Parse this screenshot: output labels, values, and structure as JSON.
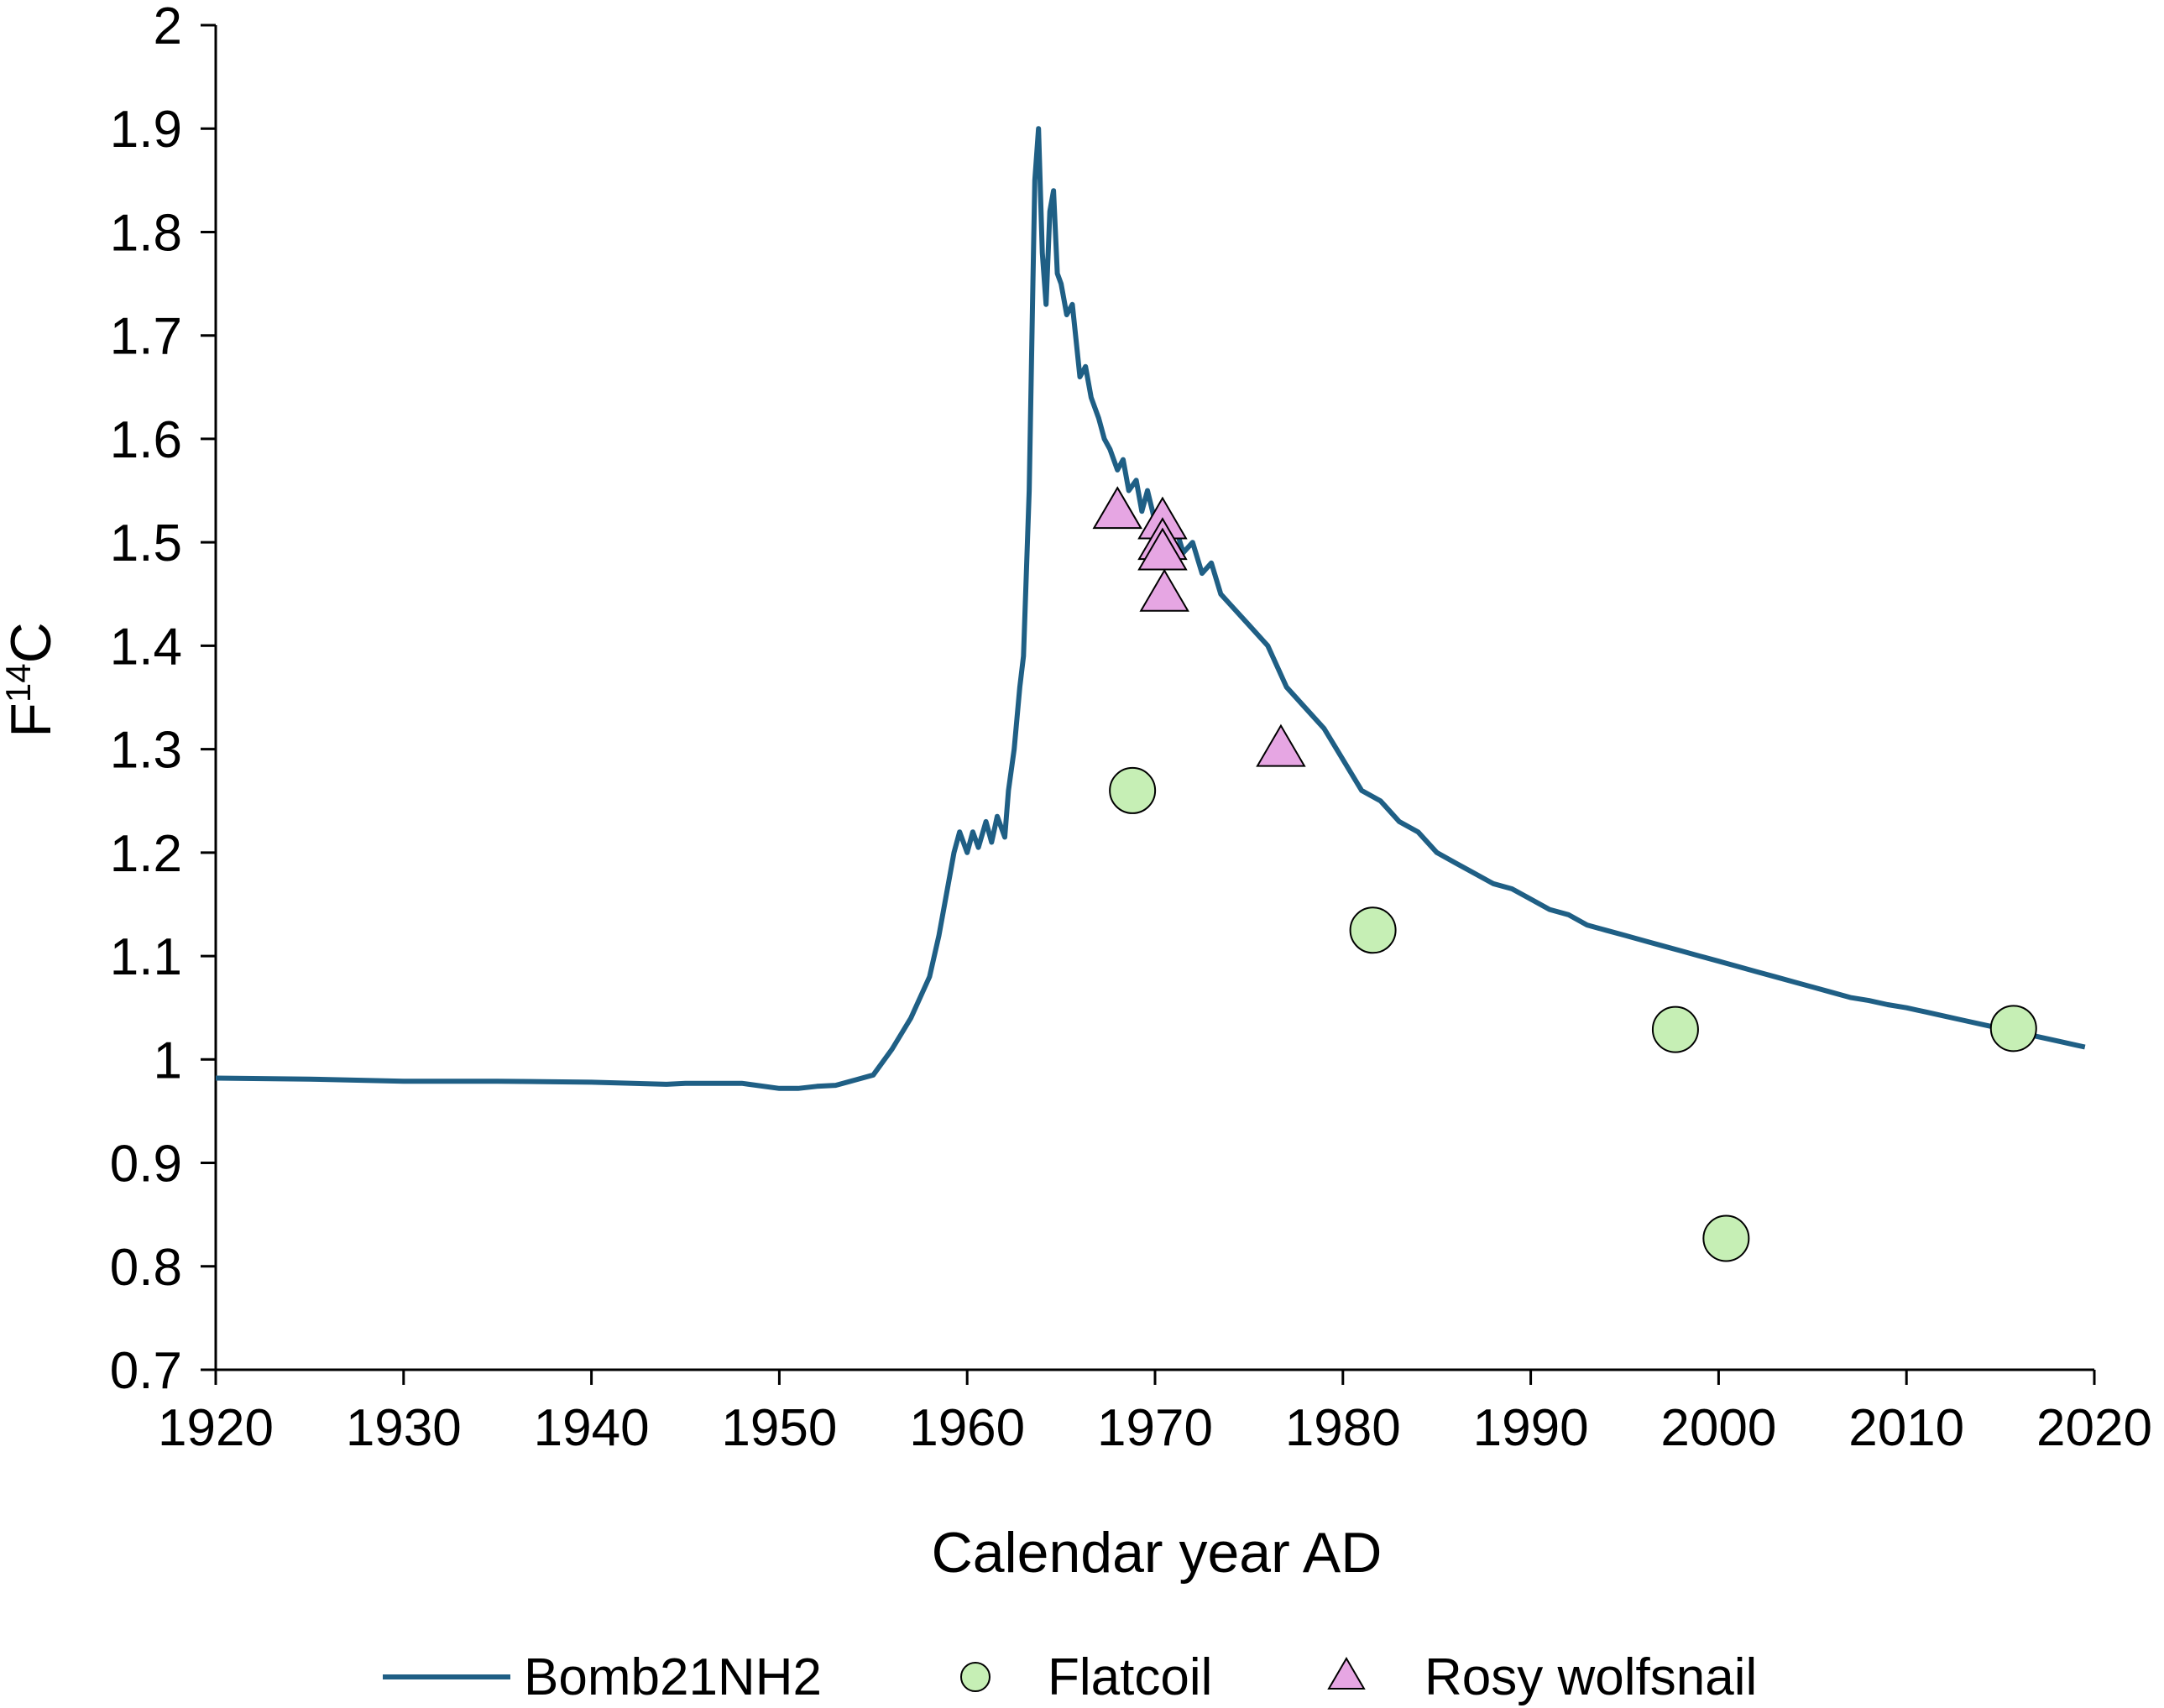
{
  "chart_data": {
    "type": "line+scatter",
    "title": "",
    "xlabel": "Calendar year AD",
    "ylabel": "F",
    "ylabel_superscript": "14",
    "ylabel_suffix": "C",
    "xlim": [
      1920,
      2020
    ],
    "ylim": [
      0.7,
      2.0
    ],
    "xticks": [
      1920,
      1930,
      1940,
      1950,
      1960,
      1970,
      1980,
      1990,
      2000,
      2010,
      2020
    ],
    "yticks": [
      0.7,
      0.8,
      0.9,
      1.0,
      1.1,
      1.2,
      1.3,
      1.4,
      1.5,
      1.6,
      1.7,
      1.8,
      1.9,
      2.0
    ],
    "ytick_labels": [
      "0.7",
      "0.8",
      "0.9",
      "1",
      "1.1",
      "1.2",
      "1.3",
      "1.4",
      "1.5",
      "1.6",
      "1.7",
      "1.8",
      "1.9",
      "2"
    ],
    "grid": false,
    "legend_position": "bottom",
    "series": [
      {
        "name": "Bomb21NH2",
        "type": "line",
        "color": "#1f5f85",
        "x": [
          1920,
          1925,
          1930,
          1935,
          1940,
          1944,
          1945,
          1948,
          1950,
          1951,
          1952,
          1953,
          1954,
          1955,
          1956,
          1957,
          1958,
          1958.5,
          1959,
          1959.3,
          1959.6,
          1960,
          1960.3,
          1960.6,
          1961,
          1961.3,
          1961.6,
          1962,
          1962.2,
          1962.5,
          1962.8,
          1963,
          1963.3,
          1963.5,
          1963.6,
          1963.8,
          1964,
          1964.2,
          1964.4,
          1964.6,
          1964.8,
          1965,
          1965.3,
          1965.6,
          1966,
          1966.3,
          1966.6,
          1967,
          1967.3,
          1967.6,
          1968,
          1968.3,
          1968.6,
          1969,
          1969.3,
          1969.6,
          1970,
          1970.3,
          1970.6,
          1971,
          1971.5,
          1972,
          1972.5,
          1973,
          1973.5,
          1974,
          1975,
          1976,
          1977,
          1978,
          1979,
          1980,
          1981,
          1982,
          1983,
          1984,
          1985,
          1986,
          1987,
          1988,
          1989,
          1990,
          1991,
          1992,
          1993,
          1994,
          1995,
          1996,
          1997,
          1998,
          1999,
          2000,
          2001,
          2002,
          2003,
          2004,
          2005,
          2006,
          2007,
          2008,
          2009,
          2010,
          2011,
          2012,
          2013,
          2014,
          2015,
          2016,
          2017,
          2018,
          2019,
          2019.5
        ],
        "y": [
          0.982,
          0.981,
          0.979,
          0.979,
          0.978,
          0.976,
          0.977,
          0.977,
          0.972,
          0.972,
          0.974,
          0.975,
          0.98,
          0.985,
          1.01,
          1.04,
          1.08,
          1.12,
          1.17,
          1.2,
          1.22,
          1.2,
          1.22,
          1.205,
          1.23,
          1.21,
          1.235,
          1.215,
          1.26,
          1.3,
          1.36,
          1.39,
          1.55,
          1.75,
          1.85,
          1.9,
          1.78,
          1.73,
          1.82,
          1.84,
          1.76,
          1.75,
          1.72,
          1.73,
          1.66,
          1.67,
          1.64,
          1.62,
          1.6,
          1.59,
          1.57,
          1.58,
          1.55,
          1.56,
          1.53,
          1.55,
          1.52,
          1.53,
          1.5,
          1.52,
          1.49,
          1.5,
          1.47,
          1.48,
          1.45,
          1.44,
          1.42,
          1.4,
          1.36,
          1.34,
          1.32,
          1.29,
          1.26,
          1.25,
          1.23,
          1.22,
          1.2,
          1.19,
          1.18,
          1.17,
          1.165,
          1.155,
          1.145,
          1.14,
          1.13,
          1.125,
          1.12,
          1.115,
          1.11,
          1.105,
          1.1,
          1.095,
          1.09,
          1.085,
          1.08,
          1.075,
          1.07,
          1.065,
          1.06,
          1.057,
          1.053,
          1.05,
          1.046,
          1.042,
          1.038,
          1.034,
          1.03,
          1.026,
          1.022,
          1.018,
          1.014,
          1.012
        ]
      },
      {
        "name": "Flatcoil",
        "type": "scatter",
        "marker": "circle",
        "color": "#c6efb5",
        "edge_color": "#000000",
        "x": [
          1968.8,
          1981.6,
          1997.7,
          2000.4,
          2015.7
        ],
        "y": [
          1.26,
          1.125,
          1.029,
          0.827,
          1.03
        ]
      },
      {
        "name": "Rosy wolfsnail",
        "type": "scatter",
        "marker": "triangle",
        "color": "#e6a6e3",
        "edge_color": "#000000",
        "x": [
          1968.0,
          1970.4,
          1970.4,
          1970.4,
          1970.5,
          1976.7
        ],
        "y": [
          1.53,
          1.52,
          1.5,
          1.49,
          1.45,
          1.3
        ]
      }
    ]
  }
}
